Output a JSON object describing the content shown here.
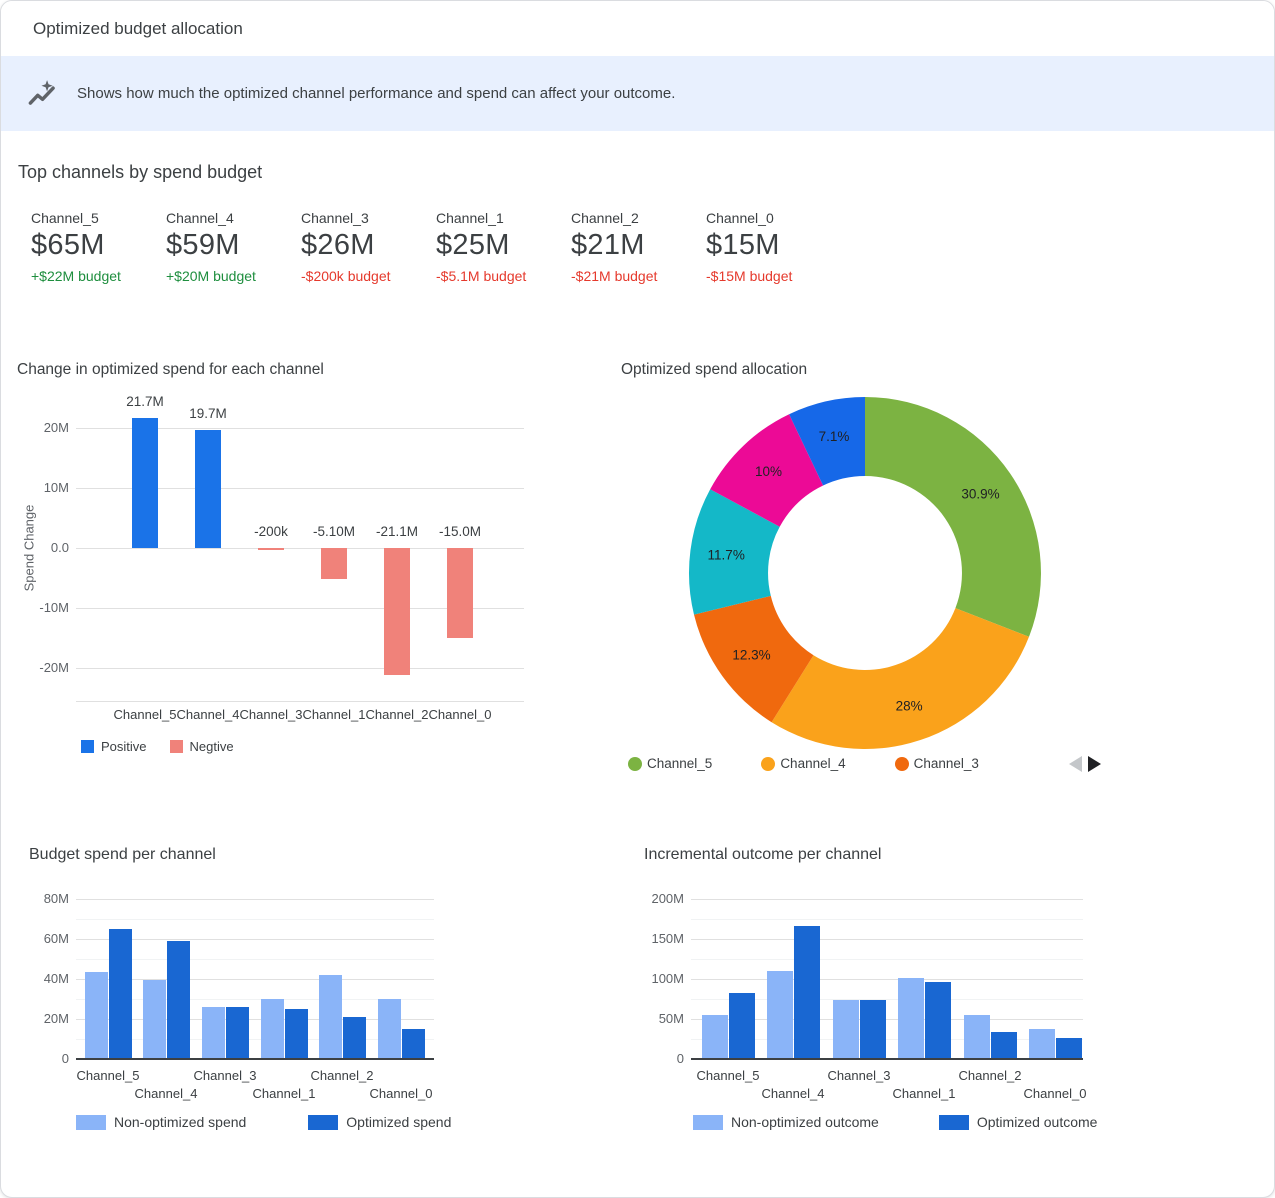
{
  "header": {
    "title": "Optimized budget allocation"
  },
  "banner": {
    "icon": "insights-icon",
    "text": "Shows how much the optimized channel performance and spend can affect your outcome.",
    "background": "#E8F0FE"
  },
  "top_channels": {
    "title": "Top channels by spend budget",
    "cards": [
      {
        "channel": "Channel_5",
        "spend": "$65M",
        "delta": "+$22M budget",
        "direction": "up"
      },
      {
        "channel": "Channel_4",
        "spend": "$59M",
        "delta": "+$20M budget",
        "direction": "up"
      },
      {
        "channel": "Channel_3",
        "spend": "$26M",
        "delta": "-$200k budget",
        "direction": "down"
      },
      {
        "channel": "Channel_1",
        "spend": "$25M",
        "delta": "-$5.1M budget",
        "direction": "down"
      },
      {
        "channel": "Channel_2",
        "spend": "$21M",
        "delta": "-$21M budget",
        "direction": "down"
      },
      {
        "channel": "Channel_0",
        "spend": "$15M",
        "delta": "-$15M budget",
        "direction": "down"
      }
    ],
    "colors": {
      "up": "#1E8E3E",
      "down": "#E5392C"
    }
  },
  "chart_data": [
    {
      "id": "spend_change",
      "type": "bar",
      "title": "Change in optimized spend for each channel",
      "ylabel": "Spend Change",
      "categories": [
        "Channel_5",
        "Channel_4",
        "Channel_3",
        "Channel_1",
        "Channel_2",
        "Channel_0"
      ],
      "values_millions": [
        21.7,
        19.7,
        -0.2,
        -5.1,
        -21.1,
        -15.0
      ],
      "bar_labels": [
        "21.7M",
        "19.7M",
        "-200k",
        "-5.10M",
        "-21.1M",
        "-15.0M"
      ],
      "ytick_labels": [
        "20M",
        "10M",
        "0.0",
        "-10M",
        "-20M"
      ],
      "ytick_values_millions": [
        20,
        10,
        0,
        -10,
        -20
      ],
      "ylim_millions": [
        -25.5,
        25.5
      ],
      "positive_color": "#1A73E8",
      "negative_color": "#F0827A",
      "legend": [
        {
          "label": "Positive",
          "color": "#1A73E8"
        },
        {
          "label": "Negtive",
          "color": "#F0827A"
        }
      ],
      "grid": true,
      "legend_position": "bottom"
    },
    {
      "id": "spend_allocation",
      "type": "pie",
      "title": "Optimized spend allocation",
      "donut_hole_ratio": 0.55,
      "start_angle_deg": 0,
      "direction": "clockwise",
      "slices": [
        {
          "pct": 30.9,
          "label": "30.9%",
          "color": "#7CB342"
        },
        {
          "pct": 28.0,
          "label": "28%",
          "color": "#FAA21B"
        },
        {
          "pct": 12.3,
          "label": "12.3%",
          "color": "#F0690E"
        },
        {
          "pct": 11.7,
          "label": "11.7%",
          "color": "#14B8C8"
        },
        {
          "pct": 10.0,
          "label": "10%",
          "color": "#EC0A96"
        },
        {
          "pct": 7.1,
          "label": "7.1%",
          "color": "#1668E8"
        }
      ],
      "legend": [
        {
          "label": "Channel_5",
          "color": "#7CB342"
        },
        {
          "label": "Channel_4",
          "color": "#FAA21B"
        },
        {
          "label": "Channel_3",
          "color": "#F0690E"
        }
      ],
      "legend_position": "bottom",
      "pager": {
        "prev_enabled": false,
        "next_enabled": true
      }
    },
    {
      "id": "budget_spend",
      "type": "grouped_bar",
      "title": "Budget spend per channel",
      "categories": [
        "Channel_5",
        "Channel_4",
        "Channel_3",
        "Channel_1",
        "Channel_2",
        "Channel_0"
      ],
      "series": [
        {
          "name": "Non-optimized spend",
          "color": "#8AB4F8",
          "values_millions": [
            43.3,
            39.3,
            26.2,
            30.1,
            42.1,
            30.0
          ]
        },
        {
          "name": "Optimized spend",
          "color": "#1967D2",
          "values_millions": [
            65,
            59,
            26,
            25,
            21,
            15
          ]
        }
      ],
      "ytick_labels": [
        "80M",
        "60M",
        "40M",
        "20M",
        "0"
      ],
      "ytick_values_millions": [
        80,
        60,
        40,
        20,
        0
      ],
      "minor_gridlines_millions": [
        70,
        50,
        30,
        10
      ],
      "ylim_millions": [
        0,
        85
      ],
      "grid": true,
      "legend_position": "bottom"
    },
    {
      "id": "incremental_outcome",
      "type": "grouped_bar",
      "title": "Incremental outcome per channel",
      "categories": [
        "Channel_5",
        "Channel_4",
        "Channel_3",
        "Channel_1",
        "Channel_2",
        "Channel_0"
      ],
      "series": [
        {
          "name": "Non-optimized outcome",
          "color": "#8AB4F8",
          "values_millions": [
            55,
            110,
            74,
            101,
            55,
            38
          ]
        },
        {
          "name": "Optimized outcome",
          "color": "#1967D2",
          "values_millions": [
            82,
            166,
            74,
            96,
            34,
            26
          ]
        }
      ],
      "ytick_labels": [
        "200M",
        "150M",
        "100M",
        "50M",
        "0"
      ],
      "ytick_values_millions": [
        200,
        150,
        100,
        50,
        0
      ],
      "minor_gridlines_millions": [
        175,
        125,
        75,
        25
      ],
      "ylim_millions": [
        0,
        212
      ],
      "grid": true,
      "legend_position": "bottom"
    }
  ]
}
